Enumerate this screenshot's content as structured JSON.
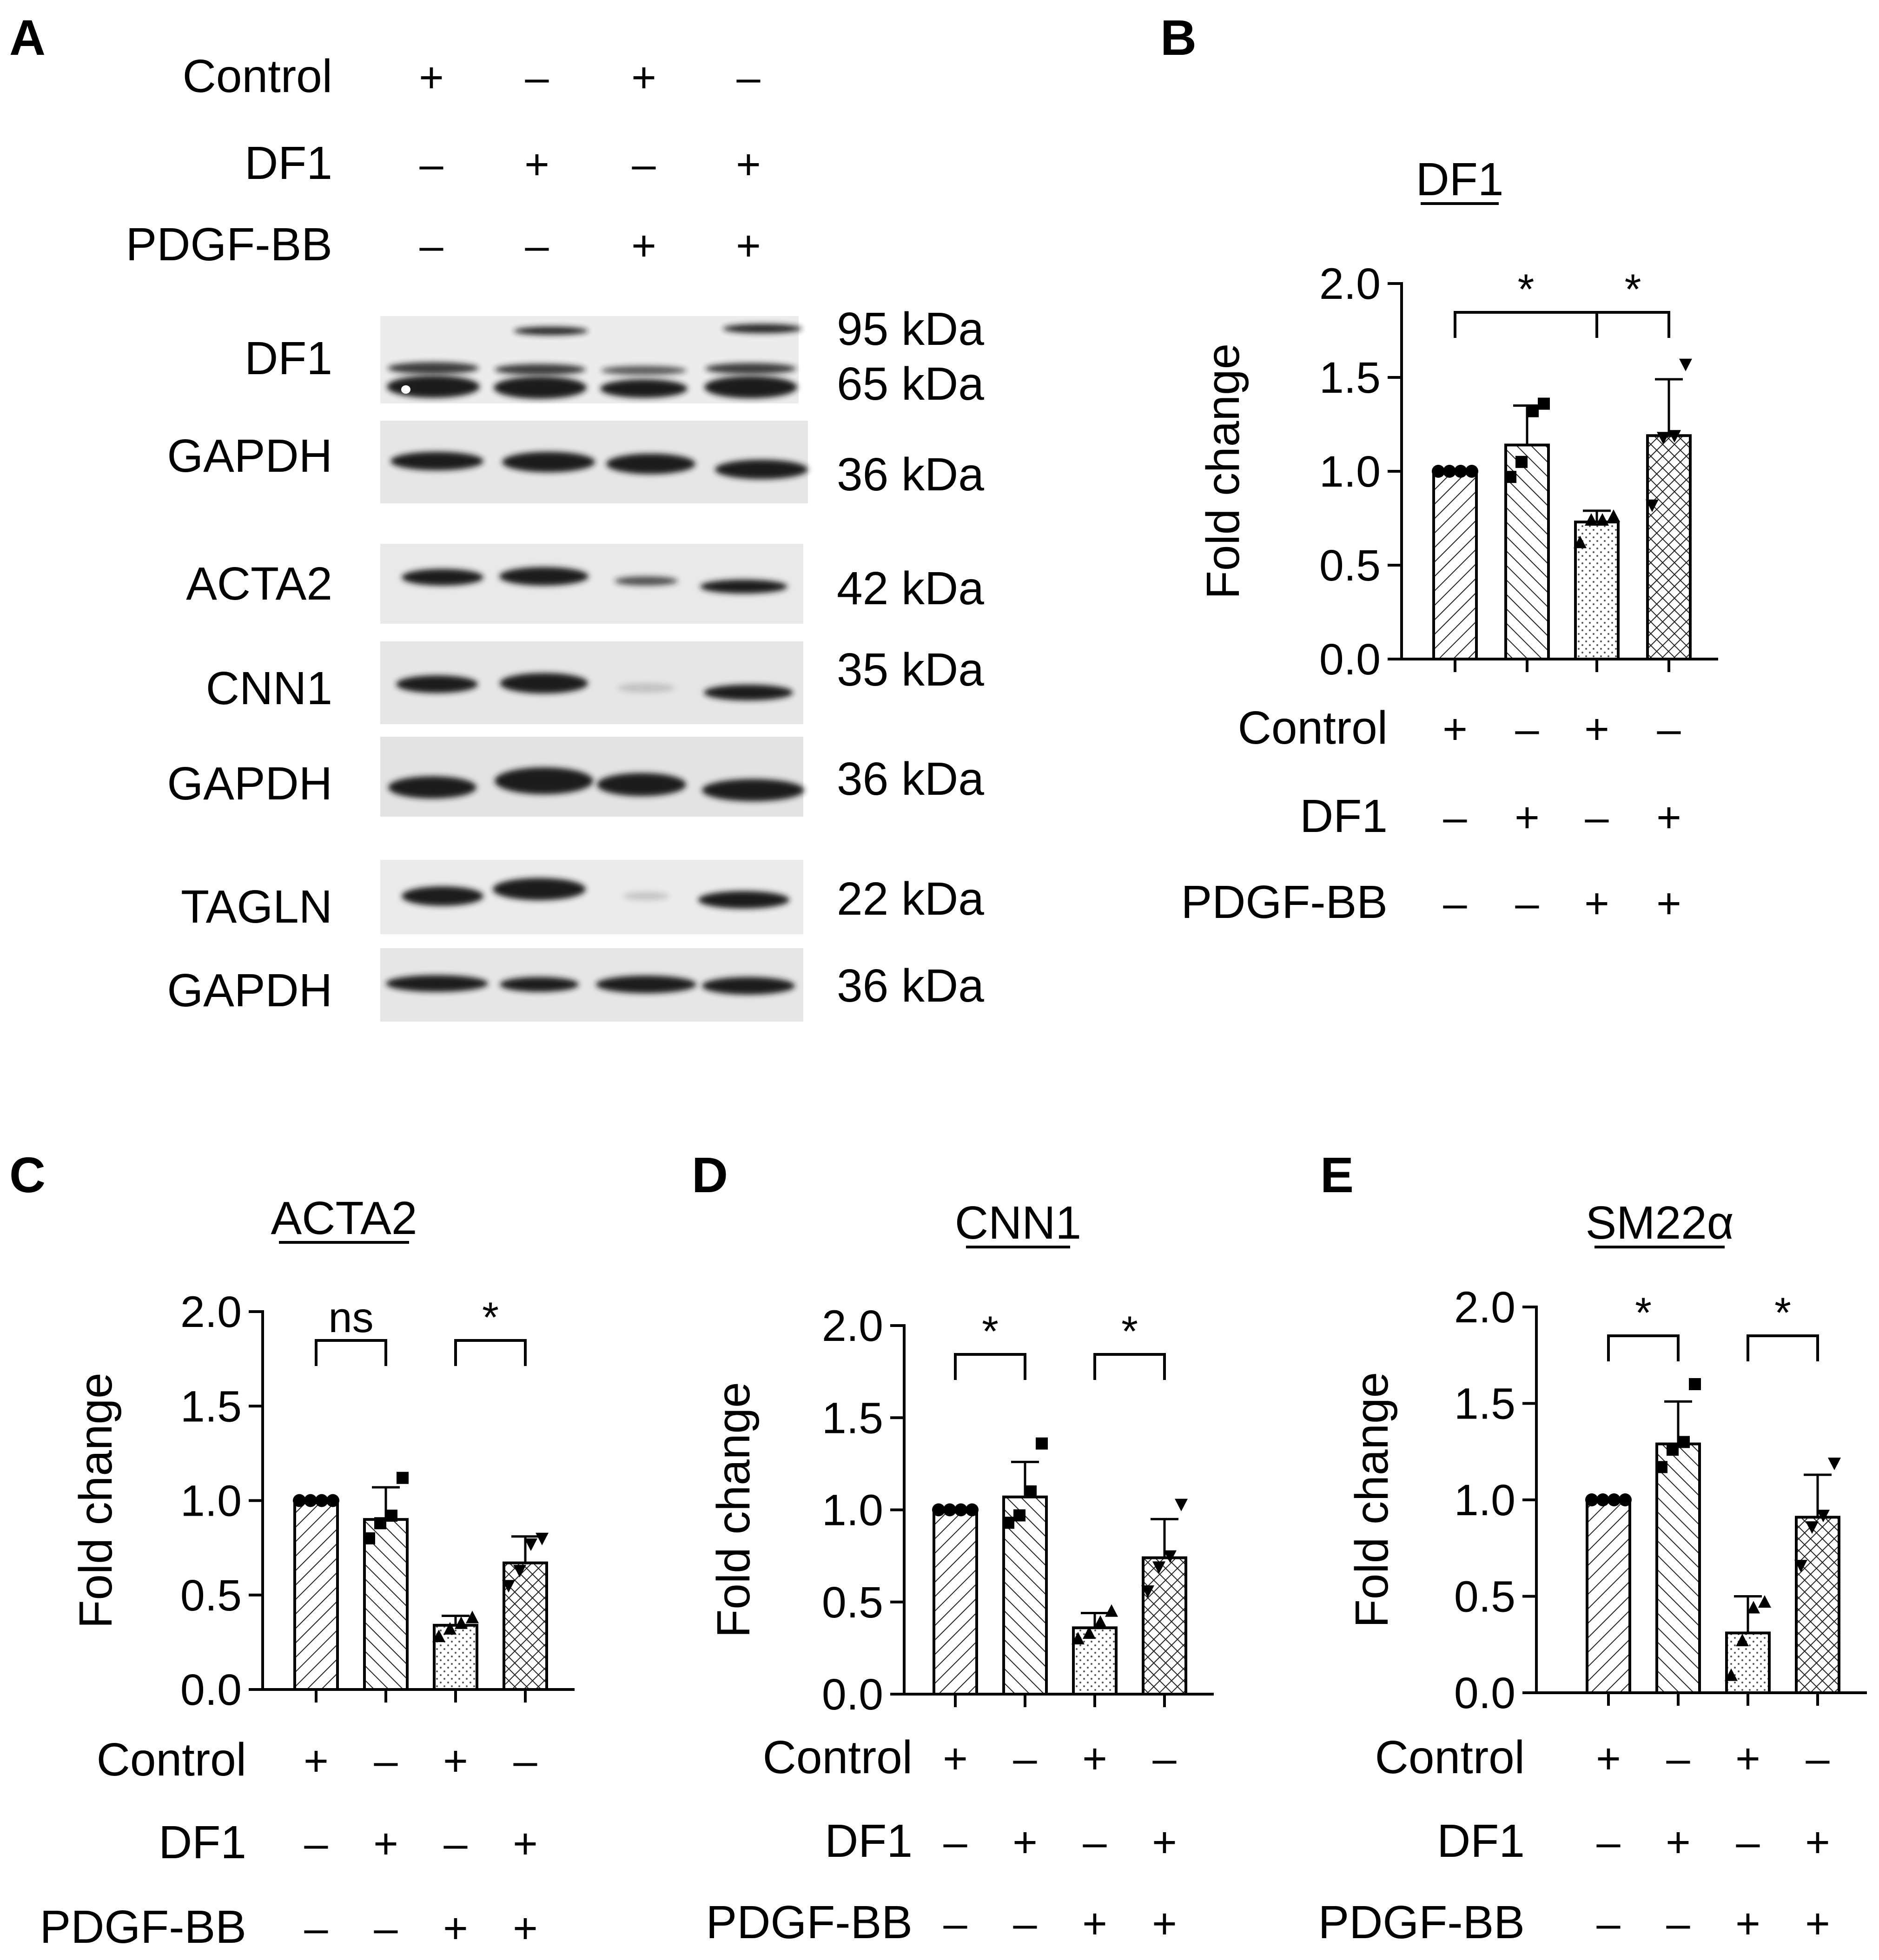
{
  "panels": [
    {
      "id": "a",
      "letter": "A"
    },
    {
      "id": "b",
      "letter": "B"
    },
    {
      "id": "c",
      "letter": "C"
    },
    {
      "id": "d",
      "letter": "D"
    },
    {
      "id": "e",
      "letter": "E"
    }
  ],
  "treatments": {
    "rows": [
      "Control",
      "DF1",
      "PDGF-BB"
    ],
    "signs": [
      [
        "+",
        "-",
        "+",
        "-"
      ],
      [
        "-",
        "+",
        "-",
        "+"
      ],
      [
        "-",
        "-",
        "+",
        "+"
      ]
    ]
  },
  "blot": {
    "rows": [
      {
        "label": "DF1",
        "sizes": [
          "95 kDa",
          "65 kDa"
        ]
      },
      {
        "label": "GAPDH",
        "sizes": [
          "36 kDa"
        ]
      },
      {
        "label": "ACTA2",
        "sizes": [
          "42 kDa"
        ]
      },
      {
        "label": "CNN1",
        "sizes": [
          "35 kDa"
        ]
      },
      {
        "label": "GAPDH",
        "sizes": [
          "36 kDa"
        ]
      },
      {
        "label": "TAGLN",
        "sizes": [
          "22 kDa"
        ]
      },
      {
        "label": "GAPDH",
        "sizes": [
          "36 kDa"
        ]
      }
    ]
  },
  "chart_data": [
    {
      "panel": "B",
      "type": "bar",
      "title": "DF1",
      "ylabel": "Fold change",
      "ylim": [
        0,
        2.0
      ],
      "yticks": [
        "0.0",
        "0.5",
        "1.0",
        "1.5",
        "2.0"
      ],
      "categories": [
        "Control",
        "DF1",
        "PDGF-BB",
        "DF1 + PDGF-BB"
      ],
      "values": [
        1.0,
        1.14,
        0.73,
        1.19
      ],
      "errors": [
        0,
        0.21,
        0.06,
        0.3
      ],
      "points": [
        [
          1.0,
          1.0,
          1.0,
          1.0
        ],
        [
          0.97,
          1.05,
          1.32,
          1.36
        ],
        [
          0.62,
          0.74,
          0.74,
          0.76
        ],
        [
          0.82,
          1.18,
          1.19,
          1.57
        ]
      ],
      "markers": [
        "circle",
        "square",
        "triangle-up",
        "triangle-down"
      ],
      "patterns": [
        "hatch",
        "hatch-back",
        "dots",
        "cross"
      ],
      "significance": [
        {
          "from": 0,
          "to": 2,
          "label": "*"
        },
        {
          "from": 2,
          "to": 3,
          "label": "*"
        }
      ]
    },
    {
      "panel": "C",
      "type": "bar",
      "title": "ACTA2",
      "ylabel": "Fold change",
      "ylim": [
        0,
        2.0
      ],
      "yticks": [
        "0.0",
        "0.5",
        "1.0",
        "1.5",
        "2.0"
      ],
      "categories": [
        "Control",
        "DF1",
        "PDGF-BB",
        "DF1 + PDGF-BB"
      ],
      "values": [
        1.0,
        0.9,
        0.34,
        0.67
      ],
      "errors": [
        0,
        0.17,
        0.05,
        0.14
      ],
      "points": [
        [
          1.0,
          1.0,
          1.0,
          1.0
        ],
        [
          0.8,
          0.88,
          0.92,
          1.12
        ],
        [
          0.28,
          0.32,
          0.35,
          0.38
        ],
        [
          0.55,
          0.63,
          0.77,
          0.8
        ]
      ],
      "markers": [
        "circle",
        "square",
        "triangle-up",
        "triangle-down"
      ],
      "patterns": [
        "hatch",
        "hatch-back",
        "dots",
        "cross"
      ],
      "significance": [
        {
          "from": 0,
          "to": 1,
          "label": "ns"
        },
        {
          "from": 2,
          "to": 3,
          "label": "*"
        }
      ]
    },
    {
      "panel": "D",
      "type": "bar",
      "title": "CNN1",
      "ylabel": "Fold change",
      "ylim": [
        0,
        2.0
      ],
      "yticks": [
        "0.0",
        "0.5",
        "1.0",
        "1.5",
        "2.0"
      ],
      "categories": [
        "Control",
        "DF1",
        "PDGF-BB",
        "DF1 + PDGF-BB"
      ],
      "values": [
        1.0,
        1.07,
        0.36,
        0.74
      ],
      "errors": [
        0,
        0.19,
        0.08,
        0.21
      ],
      "points": [
        [
          1.0,
          1.0,
          1.0,
          1.0
        ],
        [
          0.93,
          0.97,
          1.1,
          1.36
        ],
        [
          0.3,
          0.33,
          0.39,
          0.45
        ],
        [
          0.56,
          0.69,
          0.75,
          1.03
        ]
      ],
      "markers": [
        "circle",
        "square",
        "triangle-up",
        "triangle-down"
      ],
      "patterns": [
        "hatch",
        "hatch-back",
        "dots",
        "cross"
      ],
      "significance": [
        {
          "from": 0,
          "to": 1,
          "label": "*"
        },
        {
          "from": 2,
          "to": 3,
          "label": "*"
        }
      ]
    },
    {
      "panel": "E",
      "type": "bar",
      "title": "SM22α",
      "ylabel": "Fold change",
      "ylim": [
        0,
        2.0
      ],
      "yticks": [
        "0.0",
        "0.5",
        "1.0",
        "1.5",
        "2.0"
      ],
      "categories": [
        "Control",
        "DF1",
        "PDGF-BB",
        "DF1 + PDGF-BB"
      ],
      "values": [
        1.0,
        1.29,
        0.31,
        0.91
      ],
      "errors": [
        0,
        0.22,
        0.19,
        0.22
      ],
      "points": [
        [
          1.0,
          1.0,
          1.0,
          1.0
        ],
        [
          1.17,
          1.26,
          1.3,
          1.6
        ],
        [
          0.09,
          0.27,
          0.44,
          0.47
        ],
        [
          0.66,
          0.86,
          0.92,
          1.19
        ]
      ],
      "markers": [
        "circle",
        "square",
        "triangle-up",
        "triangle-down"
      ],
      "patterns": [
        "hatch",
        "hatch-back",
        "dots",
        "cross"
      ],
      "significance": [
        {
          "from": 0,
          "to": 1,
          "label": "*"
        },
        {
          "from": 2,
          "to": 3,
          "label": "*"
        }
      ]
    }
  ]
}
